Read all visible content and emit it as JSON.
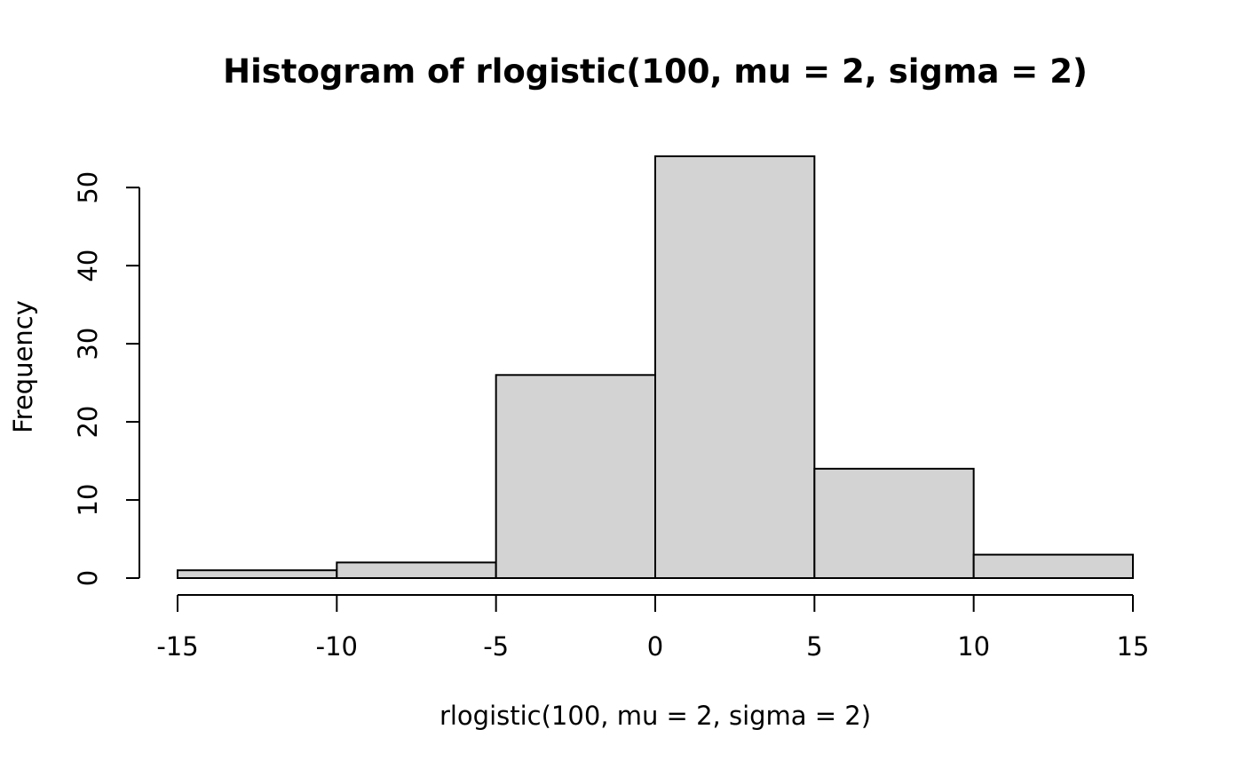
{
  "chart_data": {
    "type": "bar",
    "title": "Histogram of rlogistic(100, mu = 2, sigma = 2)",
    "xlabel": "rlogistic(100, mu = 2, sigma = 2)",
    "ylabel": "Frequency",
    "bins": [
      {
        "from": -15,
        "to": -10,
        "count": 1
      },
      {
        "from": -10,
        "to": -5,
        "count": 2
      },
      {
        "from": -5,
        "to": 0,
        "count": 26
      },
      {
        "from": 0,
        "to": 5,
        "count": 54
      },
      {
        "from": 5,
        "to": 10,
        "count": 14
      },
      {
        "from": 10,
        "to": 15,
        "count": 3
      }
    ],
    "x_ticks": [
      -15,
      -10,
      -5,
      0,
      5,
      10,
      15
    ],
    "y_ticks": [
      0,
      10,
      20,
      30,
      40,
      50
    ],
    "xlim": [
      -15,
      15
    ],
    "ylim": [
      0,
      54
    ],
    "bar_color": "#d3d3d3",
    "grid": false
  }
}
